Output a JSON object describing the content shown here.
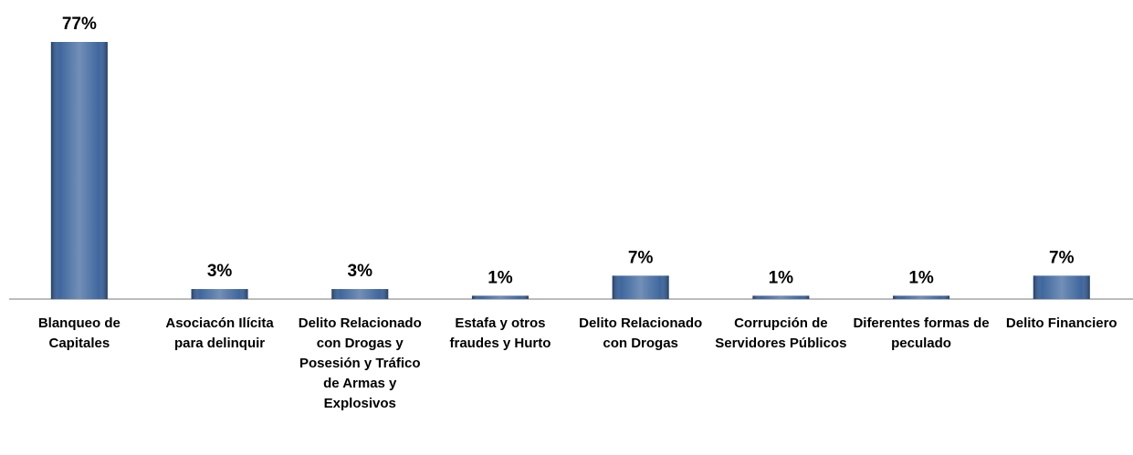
{
  "chart_data": {
    "type": "bar",
    "categories": [
      "Blanqueo de Capitales",
      "Asociacón Ilícita para delinquir",
      "Delito Relacionado con Drogas y Posesión y Tráfico de Armas y Explosivos",
      "Estafa y otros fraudes y Hurto",
      "Delito Relacionado con Drogas",
      "Corrupción de Servidores Públicos",
      "Diferentes formas de peculado",
      "Delito Financiero"
    ],
    "values": [
      77,
      3,
      3,
      1,
      7,
      1,
      1,
      7
    ],
    "value_labels": [
      "77%",
      "3%",
      "3%",
      "1%",
      "7%",
      "1%",
      "1%",
      "7%"
    ],
    "color": "#355f99"
  }
}
